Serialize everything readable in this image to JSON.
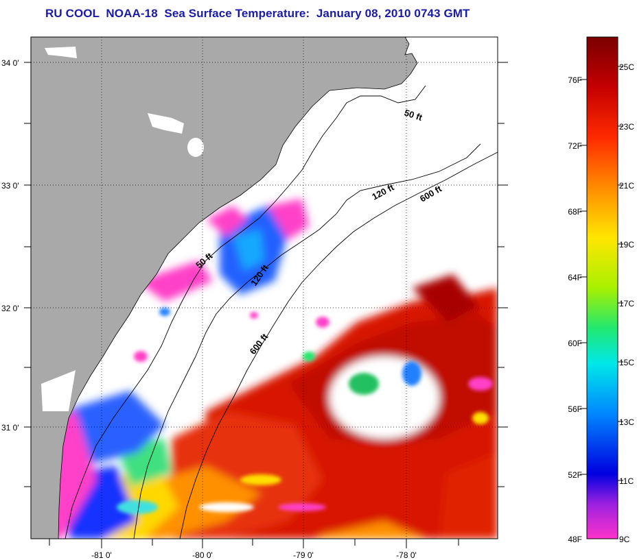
{
  "title": "RU COOL  NOAA-18  Sea Surface Temperature:  January 08, 2010 0743 GMT",
  "map": {
    "lat_labels": [
      "34 0'",
      "33 0'",
      "32 0'",
      "31 0'"
    ],
    "lon_labels": [
      "-81 0'",
      "-80 0'",
      "-79 0'",
      "-78 0'"
    ],
    "contour_labels": [
      "50 ft",
      "120 ft",
      "600 ft",
      "50 ft",
      "120 ft",
      "600 ft"
    ],
    "colors": {
      "land": "#a9a9a9",
      "ocean_no_data": "#ffffff",
      "frame": "#000000"
    }
  },
  "colorbar": {
    "fahrenheit_labels": [
      "76F",
      "72F",
      "68F",
      "64F",
      "60F",
      "56F",
      "52F",
      "48F"
    ],
    "celsius_labels": [
      "25C",
      "23C",
      "21C",
      "19C",
      "17C",
      "15C",
      "13C",
      "11C",
      "9C"
    ],
    "colors_top_to_bottom": [
      "#7a0000",
      "#c40000",
      "#ff2a00",
      "#ff8c00",
      "#ffe600",
      "#a8f000",
      "#22e870",
      "#00e8e8",
      "#0088ff",
      "#0000e0",
      "#9a20e0",
      "#ff33cc"
    ]
  }
}
